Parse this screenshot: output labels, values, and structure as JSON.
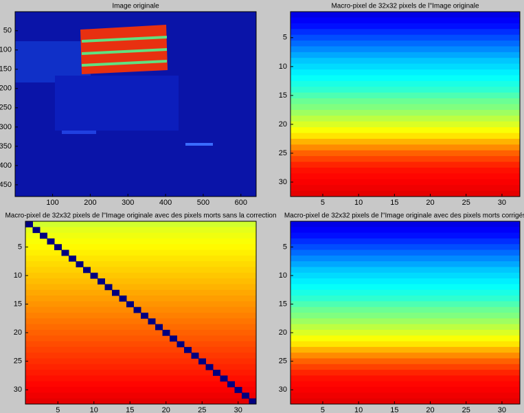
{
  "chart_data": [
    {
      "type": "image",
      "title": "Image originale",
      "xlim": [
        0.5,
        640.5
      ],
      "ylim": [
        0.5,
        480.5
      ],
      "xticks": [
        100,
        200,
        300,
        400,
        500,
        600
      ],
      "yticks": [
        50,
        100,
        150,
        200,
        250,
        300,
        350,
        400,
        450
      ],
      "ydir": "reverse"
    },
    {
      "type": "heatmap",
      "title": "Macro-pixel de 32x32 pixels de l''Image originale",
      "xlim": [
        0.5,
        32.5
      ],
      "ylim": [
        0.5,
        32.5
      ],
      "xticks": [
        5,
        10,
        15,
        20,
        25,
        30
      ],
      "yticks": [
        5,
        10,
        15,
        20,
        25,
        30
      ],
      "ydir": "reverse",
      "clim": [
        0,
        1
      ],
      "values": [
        0.1,
        0.12,
        0.14,
        0.17,
        0.2,
        0.23,
        0.26,
        0.29,
        0.32,
        0.34,
        0.36,
        0.38,
        0.4,
        0.42,
        0.45,
        0.48,
        0.5,
        0.53,
        0.56,
        0.59,
        0.62,
        0.65,
        0.7,
        0.74,
        0.78,
        0.81,
        0.84,
        0.86,
        0.87,
        0.88,
        0.89,
        0.9
      ]
    },
    {
      "type": "heatmap",
      "title": "Macro-pixel de 32x32 pixels de l''Image originale avec des pixels morts sans la correction",
      "xlim": [
        0.5,
        32.5
      ],
      "ylim": [
        0.5,
        32.5
      ],
      "xticks": [
        5,
        10,
        15,
        20,
        25,
        30
      ],
      "yticks": [
        5,
        10,
        15,
        20,
        25,
        30
      ],
      "ydir": "reverse",
      "clim": [
        0,
        1
      ],
      "values": [
        0.58,
        0.6,
        0.61,
        0.62,
        0.63,
        0.64,
        0.65,
        0.66,
        0.67,
        0.68,
        0.69,
        0.7,
        0.71,
        0.72,
        0.73,
        0.74,
        0.75,
        0.76,
        0.77,
        0.78,
        0.79,
        0.8,
        0.81,
        0.82,
        0.83,
        0.84,
        0.85,
        0.86,
        0.87,
        0.88,
        0.89,
        0.9
      ],
      "diagonal": [
        0,
        0,
        0,
        0,
        0,
        0,
        0,
        0,
        0,
        0,
        0,
        0,
        0,
        0,
        0,
        0,
        0,
        0,
        0,
        0,
        0,
        0,
        0,
        0,
        0,
        0,
        0,
        0,
        0,
        0,
        0,
        0
      ]
    },
    {
      "type": "heatmap",
      "title": "Macro-pixel de 32x32 pixels de l''Image originale avec des pixels morts corrigés",
      "xlim": [
        0.5,
        32.5
      ],
      "ylim": [
        0.5,
        32.5
      ],
      "xticks": [
        5,
        10,
        15,
        20,
        25,
        30
      ],
      "yticks": [
        5,
        10,
        15,
        20,
        25,
        30
      ],
      "ydir": "reverse",
      "clim": [
        0,
        1
      ],
      "values": [
        0.1,
        0.12,
        0.14,
        0.17,
        0.2,
        0.23,
        0.26,
        0.29,
        0.32,
        0.34,
        0.36,
        0.38,
        0.4,
        0.42,
        0.45,
        0.48,
        0.5,
        0.53,
        0.56,
        0.59,
        0.62,
        0.65,
        0.7,
        0.74,
        0.78,
        0.81,
        0.84,
        0.86,
        0.87,
        0.88,
        0.89,
        0.9
      ]
    }
  ]
}
